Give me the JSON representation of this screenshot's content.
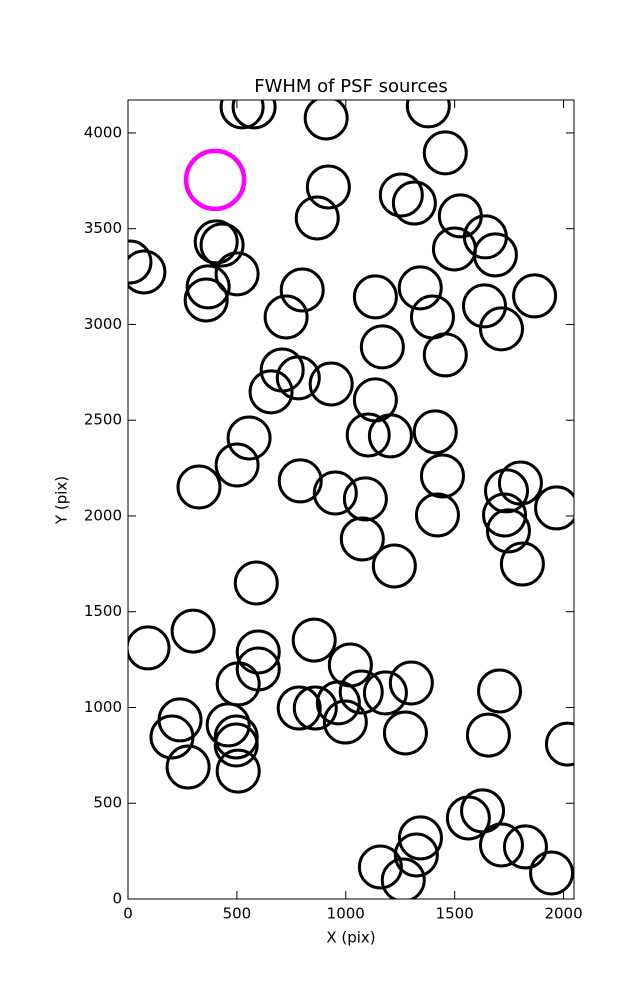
{
  "chart_data": {
    "type": "scatter",
    "title": "FWHM of PSF sources",
    "xlabel": "X (pix)",
    "ylabel": "Y (pix)",
    "xlim": [
      0,
      2048
    ],
    "ylim": [
      0,
      4172
    ],
    "xticks": [
      0,
      500,
      1000,
      1500,
      2000
    ],
    "yticks": [
      0,
      500,
      1000,
      1500,
      2000,
      2500,
      3000,
      3500,
      4000
    ],
    "series": [
      {
        "color": "#000000",
        "x": [
          524,
          579,
          910,
          1379,
          1457,
          920,
          869,
          1255,
          1315,
          1526,
          1641,
          1499,
          1687,
          9,
          73,
          405,
          432,
          501,
          368,
          359,
          800,
          726,
          1136,
          1342,
          1398,
          1637,
          1715,
          1867,
          1168,
          1457,
          708,
          782,
          657,
          933,
          1136,
          1103,
          1205,
          1411,
          556,
          501,
          326,
          791,
          952,
          1090,
          1444,
          1421,
          1802,
          1738,
          1729,
          1747,
          1968,
          1076,
          1223,
          1811,
          589,
          92,
          299,
          598,
          598,
          855,
          1021,
          506,
          1071,
          1182,
          1301,
          1706,
          786,
          860,
          966,
          998,
          239,
          202,
          460,
          497,
          497,
          276,
          506,
          1274,
          1655,
          2018,
          1628,
          1563,
          1343,
          1324,
          1715,
          1825,
          1945,
          1159,
          1264
        ],
        "y": [
          4136,
          4136,
          4078,
          4141,
          3896,
          3718,
          3556,
          3676,
          3634,
          3567,
          3457,
          3394,
          3363,
          3326,
          3274,
          3431,
          3415,
          3264,
          3196,
          3128,
          3180,
          3039,
          3144,
          3191,
          3039,
          3097,
          2977,
          3149,
          2883,
          2841,
          2762,
          2721,
          2648,
          2689,
          2606,
          2423,
          2418,
          2439,
          2407,
          2266,
          2151,
          2183,
          2120,
          2089,
          2209,
          2005,
          2172,
          2131,
          2005,
          1922,
          2042,
          1880,
          1739,
          1749,
          1650,
          1311,
          1399,
          1290,
          1201,
          1352,
          1222,
          1123,
          1081,
          1076,
          1128,
          1086,
          997,
          997,
          1024,
          924,
          935,
          846,
          909,
          846,
          804,
          689,
          668,
          867,
          856,
          809,
          460,
          423,
          319,
          230,
          282,
          272,
          136,
          167,
          99
        ]
      },
      {
        "color": "#ff00ff",
        "x": [
          400
        ],
        "y": [
          3755
        ]
      }
    ]
  }
}
